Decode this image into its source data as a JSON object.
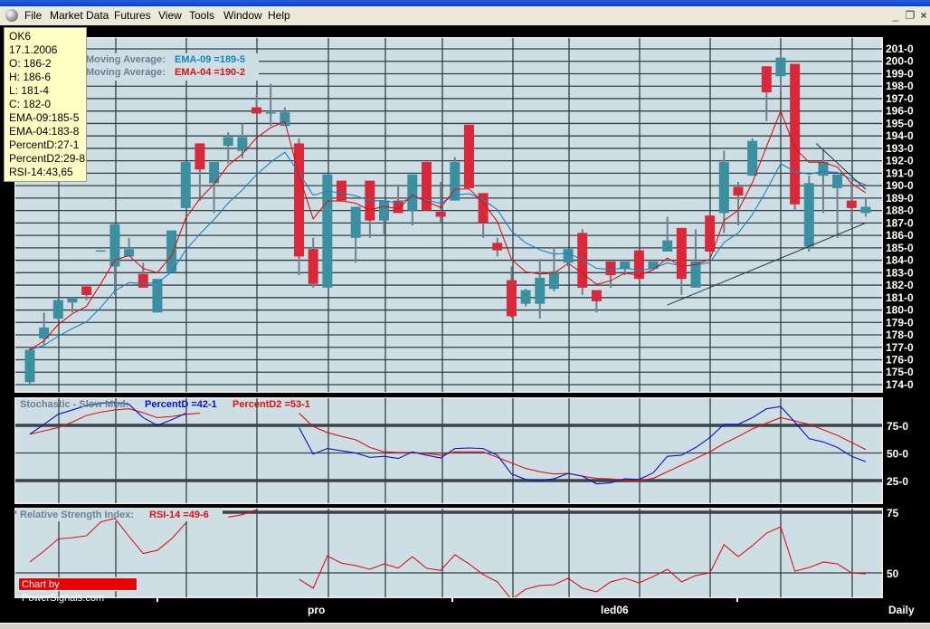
{
  "menu": {
    "items": [
      "File",
      "Market Data",
      "Futures",
      "View",
      "Tools",
      "Window",
      "Help"
    ]
  },
  "window_controls": {
    "minimize": "_",
    "restore": "❐",
    "close": "×"
  },
  "tooltip": [
    "OK6",
    "17.1.2006",
    "O: 186-2",
    "H: 186-6",
    "L: 181-4",
    "C: 182-0",
    "EMA-09:185-5",
    "EMA-04:183-8",
    "PercentD:27-1",
    "PercentD2:29-8",
    "RSI-14:43,65"
  ],
  "credit": "Chart by PowerSignals.com",
  "colors": {
    "up": "#3a8fa0",
    "down": "#d9283a",
    "panel": "#cddfe5",
    "ema09": "#1a80c4",
    "ema04": "#e01010",
    "pctD": "#1010c8",
    "pctD2": "#e01010",
    "rsi": "#e01010"
  },
  "chart_data": [
    {
      "type": "candlestick",
      "legend": [
        {
          "label": "Moving Average:",
          "value": "EMA-09 =189-5"
        },
        {
          "label": "Moving Average:",
          "value": "EMA-04 =190-2"
        }
      ],
      "ylim": [
        174,
        201
      ],
      "y_ticks": [
        "174-0",
        "175-0",
        "176-0",
        "177-0",
        "178-0",
        "179-0",
        "180-0",
        "181-0",
        "182-0",
        "183-0",
        "184-0",
        "185-0",
        "186-0",
        "187-0",
        "188-0",
        "189-0",
        "190-0",
        "191-0",
        "192-0",
        "193-0",
        "194-0",
        "195-0",
        "196-0",
        "197-0",
        "198-0",
        "199-0",
        "200-0",
        "201-0"
      ],
      "x_labels": [
        "pro",
        "led06"
      ],
      "period": "Daily",
      "grid": true,
      "ohlc": [
        [
          174.2,
          177,
          174,
          176.8
        ],
        [
          177.7,
          179.8,
          177.2,
          178.6
        ],
        [
          179.3,
          181,
          179.2,
          180.8
        ],
        [
          180.6,
          181,
          179.8,
          181
        ],
        [
          181.9,
          182,
          180.8,
          181.2
        ],
        [
          184.8,
          184.8,
          184.8,
          184.8
        ],
        [
          183.5,
          186.9,
          181.2,
          186.9
        ],
        [
          184.3,
          185.8,
          184.3,
          184.9
        ],
        [
          182.9,
          183.8,
          181.8,
          181.8
        ],
        [
          179.8,
          182.5,
          179.8,
          182.5
        ],
        [
          183,
          186.4,
          183,
          186.4
        ],
        [
          188.2,
          191.9,
          188.2,
          191.9
        ],
        [
          193.4,
          193.4,
          188.8,
          191.3
        ],
        [
          190.2,
          191.9,
          187.8,
          191.9
        ],
        [
          193.2,
          194.3,
          191.8,
          193.9
        ],
        [
          192.8,
          195,
          192.2,
          193.9
        ],
        [
          196.3,
          197.3,
          195.8,
          195.8
        ],
        [
          195.9,
          198.2,
          194.8,
          195.9
        ],
        [
          194.8,
          196.3,
          194.8,
          195.9
        ],
        [
          193.4,
          193.8,
          182.8,
          184.3
        ],
        [
          184.9,
          185.8,
          181.8,
          182.1
        ],
        [
          181.8,
          190.9,
          181.8,
          190.9
        ],
        [
          190.4,
          190.4,
          188.8,
          188.8
        ],
        [
          185.8,
          188.3,
          183.8,
          188.3
        ],
        [
          190.4,
          190.4,
          185.8,
          187.2
        ],
        [
          187.2,
          188.8,
          186.1,
          188.8
        ],
        [
          188.8,
          190.1,
          187.8,
          187.8
        ],
        [
          188,
          190.9,
          186.8,
          190.9
        ],
        [
          191.9,
          191.9,
          188,
          188
        ],
        [
          187.9,
          190.3,
          187,
          187.5
        ],
        [
          188.8,
          192.3,
          188.8,
          191.9
        ],
        [
          194.9,
          194.9,
          189.8,
          189.8
        ],
        [
          189.4,
          189.4,
          185.8,
          187
        ],
        [
          185.4,
          185.8,
          184.3,
          184.8
        ],
        [
          182.4,
          183.5,
          179.4,
          179.5
        ],
        [
          180.5,
          181.7,
          180.3,
          181.6
        ],
        [
          180.5,
          184.1,
          179.3,
          182.6
        ],
        [
          181.7,
          185,
          181.5,
          183.1
        ],
        [
          183.8,
          184.9,
          183.5,
          184.9
        ],
        [
          186.2,
          186.5,
          181.2,
          181.8
        ],
        [
          181.6,
          181.6,
          179.8,
          180.7
        ],
        [
          183.9,
          183.9,
          181.8,
          182.8
        ],
        [
          183.3,
          183.9,
          182.8,
          183.9
        ],
        [
          184.8,
          184.8,
          182.5,
          182.5
        ],
        [
          183.3,
          183.9,
          183.3,
          183.9
        ],
        [
          184.7,
          187.5,
          184.7,
          185.6
        ],
        [
          186.6,
          186.6,
          181.2,
          182.5
        ],
        [
          181.8,
          186.5,
          181.8,
          183.9
        ],
        [
          187.6,
          187.8,
          184.7,
          184.7
        ],
        [
          187.8,
          192.8,
          186.2,
          191.9
        ],
        [
          189.9,
          190.3,
          186.8,
          189.2
        ],
        [
          190.8,
          193.8,
          190.8,
          193.6
        ],
        [
          199.6,
          199.6,
          195.2,
          197.5
        ],
        [
          198.8,
          200.6,
          197.5,
          200.3
        ],
        [
          199.8,
          199.8,
          188,
          188.5
        ],
        [
          185.1,
          190.8,
          184.7,
          190.2
        ],
        [
          190.8,
          193,
          187.8,
          191.9
        ],
        [
          189.8,
          190.9,
          185.8,
          190.9
        ],
        [
          188.8,
          190.3,
          186.8,
          188.2
        ],
        [
          187.8,
          189,
          187.5,
          188.3
        ]
      ],
      "trendlines": [
        {
          "from": [
            45,
            180.4
          ],
          "to": [
            59,
            187
          ]
        },
        {
          "from": [
            55.5,
            193.4
          ],
          "to": [
            59,
            189.7
          ]
        }
      ]
    },
    {
      "type": "line",
      "title": "Stochastic - Slow Mod:",
      "ylim": [
        0,
        100
      ],
      "y_ticks": [
        "75-0",
        "50-0",
        "25-0"
      ],
      "series": [
        {
          "name": "PercentD =42-1",
          "values": [
            67,
            76,
            85,
            89,
            93,
            95,
            96,
            94,
            82,
            75,
            80,
            86,
            null,
            null,
            null,
            null,
            null,
            null,
            null,
            73,
            49,
            54,
            52,
            50,
            46,
            47,
            45,
            51,
            48,
            45.5,
            54,
            54.5,
            54,
            48,
            31,
            26,
            25,
            26.6,
            31.5,
            29,
            22,
            23,
            26.6,
            26,
            32,
            47,
            48,
            55,
            64,
            76,
            76,
            82,
            90,
            92,
            78,
            63,
            60,
            55,
            47,
            42.1
          ]
        },
        {
          "name": "PercentD2 =53-1",
          "values": [
            67,
            70,
            73,
            78,
            84,
            87,
            89,
            90,
            86.5,
            82,
            83,
            85,
            86,
            null,
            null,
            null,
            null,
            null,
            null,
            86,
            74,
            68.5,
            65,
            62,
            55,
            51,
            50.5,
            50.5,
            49.5,
            48,
            51,
            51,
            51,
            46,
            41,
            36,
            33,
            31,
            31.5,
            29,
            27,
            26.5,
            25.5,
            25,
            27,
            33,
            39,
            45,
            51,
            58.6,
            65,
            71.7,
            77,
            82,
            79,
            76,
            71,
            66,
            59.5,
            53.1
          ]
        }
      ]
    },
    {
      "type": "line",
      "title": "Relative Strength Index:",
      "ylim": [
        40,
        77
      ],
      "y_ticks": [
        "75",
        "50"
      ],
      "series": [
        {
          "name": "RSI-14 =49-6",
          "values": [
            54.5,
            59,
            64,
            64.5,
            65.3,
            71,
            72.5,
            65,
            58,
            59.3,
            64,
            70.5,
            null,
            null,
            73,
            74,
            76,
            null,
            null,
            47.4,
            43.7,
            57,
            54,
            53,
            51.5,
            53.7,
            52,
            56.7,
            51.9,
            51,
            57.5,
            53.7,
            49.3,
            46.3,
            39,
            43.3,
            44.8,
            45.1,
            47.8,
            43.7,
            42.2,
            46.3,
            47.8,
            45.9,
            48.5,
            51.5,
            46.3,
            48.9,
            50,
            61.6,
            56.7,
            61.2,
            66.4,
            69,
            50.7,
            52.2,
            54.5,
            53.7,
            50,
            49.6
          ]
        }
      ]
    }
  ]
}
